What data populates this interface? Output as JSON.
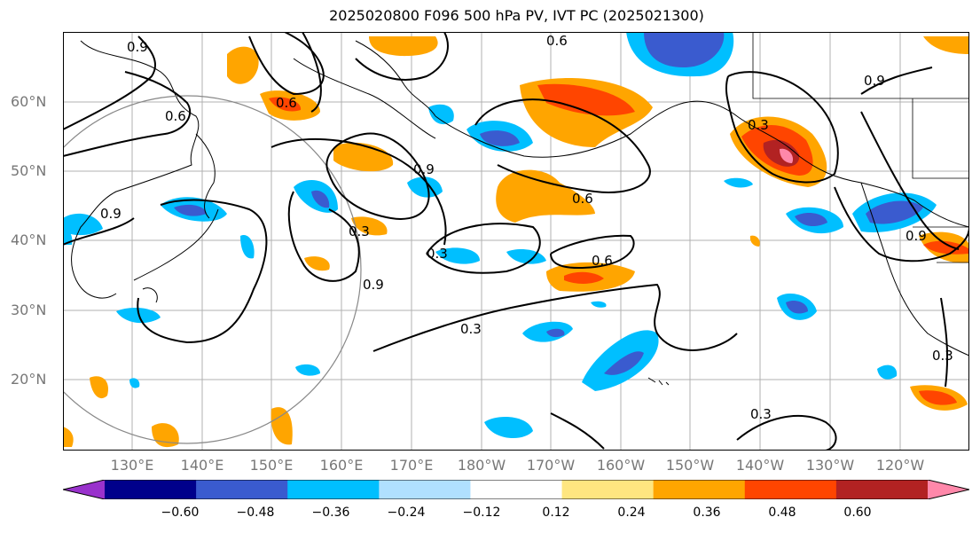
{
  "title": "2025020800 F096 500 hPa PV, IVT PC (2025021300)",
  "lat_labels": [
    "60°N",
    "50°N",
    "40°N",
    "30°N",
    "20°N"
  ],
  "lon_labels": [
    "130°E",
    "140°E",
    "150°E",
    "160°E",
    "170°E",
    "180°W",
    "170°W",
    "160°W",
    "150°W",
    "140°W",
    "130°W",
    "120°W"
  ],
  "contour_labels": [
    "0.9",
    "0.6",
    "0.6",
    "0.6",
    "0.9",
    "0.9",
    "0.3",
    "0.3",
    "0.9",
    "0.3",
    "0.6",
    "0.3",
    "0.3",
    "0.6",
    "0.9",
    "0.3",
    "0.9"
  ],
  "colorbar": {
    "ticks": [
      "−0.60",
      "−0.48",
      "−0.36",
      "−0.24",
      "−0.12",
      "0.12",
      "0.24",
      "0.36",
      "0.48",
      "0.60"
    ],
    "colors": [
      "#9932cc",
      "#00008b",
      "#3a5bcf",
      "#00bfff",
      "#b0e0ff",
      "#ffffff",
      "#ffe680",
      "#ffa500",
      "#ff4500",
      "#b22222",
      "#ff88aa"
    ]
  }
}
